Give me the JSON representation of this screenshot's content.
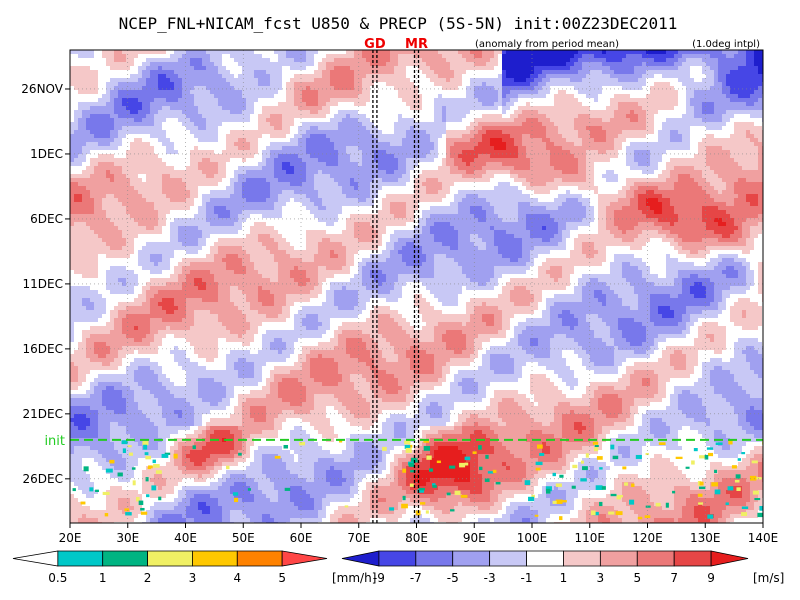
{
  "chart_data": {
    "type": "heatmap",
    "title": "NCEP_FNL+NICAM_fcst U850 & PRECP (5S-5N) init:00Z23DEC2011",
    "subtitle_left": "(anomaly from period mean)",
    "subtitle_right": "(1.0deg intpl)",
    "x_ticks": [
      "20E",
      "30E",
      "40E",
      "50E",
      "60E",
      "70E",
      "80E",
      "90E",
      "100E",
      "110E",
      "120E",
      "130E",
      "140E"
    ],
    "x_tick_values": [
      20,
      30,
      40,
      50,
      60,
      70,
      80,
      90,
      100,
      110,
      120,
      130,
      140
    ],
    "xlim": [
      20,
      140
    ],
    "y_ticks": [
      "26NOV",
      "1DEC",
      "6DEC",
      "11DEC",
      "16DEC",
      "21DEC",
      "26DEC"
    ],
    "y_tick_values": [
      0,
      5,
      10,
      15,
      20,
      25,
      30
    ],
    "ylim": [
      -3,
      33.4
    ],
    "init_label": "init",
    "init_day": 27,
    "markers": [
      {
        "label": "GD",
        "lon": 72.8
      },
      {
        "label": "MR",
        "lon": 80.0
      }
    ],
    "precip_colorbar": {
      "levels": [
        "0.5",
        "1",
        "2",
        "3",
        "4",
        "5"
      ],
      "unit": "[mm/h]",
      "colors": [
        "#ffffff",
        "#00c8c8",
        "#00b482",
        "#f0f064",
        "#ffc800",
        "#ff8200",
        "#ff4646"
      ]
    },
    "wind_colorbar": {
      "levels": [
        "-9",
        "-7",
        "-5",
        "-3",
        "-1",
        "1",
        "3",
        "5",
        "7",
        "9"
      ],
      "unit": "[m/s]",
      "colors": [
        "#1e1ecd",
        "#4646e6",
        "#7878eb",
        "#a0a0f0",
        "#c8c8f5",
        "#ffffff",
        "#f5c8c8",
        "#f0a0a0",
        "#eb7878",
        "#e64646",
        "#e61e1e"
      ]
    }
  }
}
